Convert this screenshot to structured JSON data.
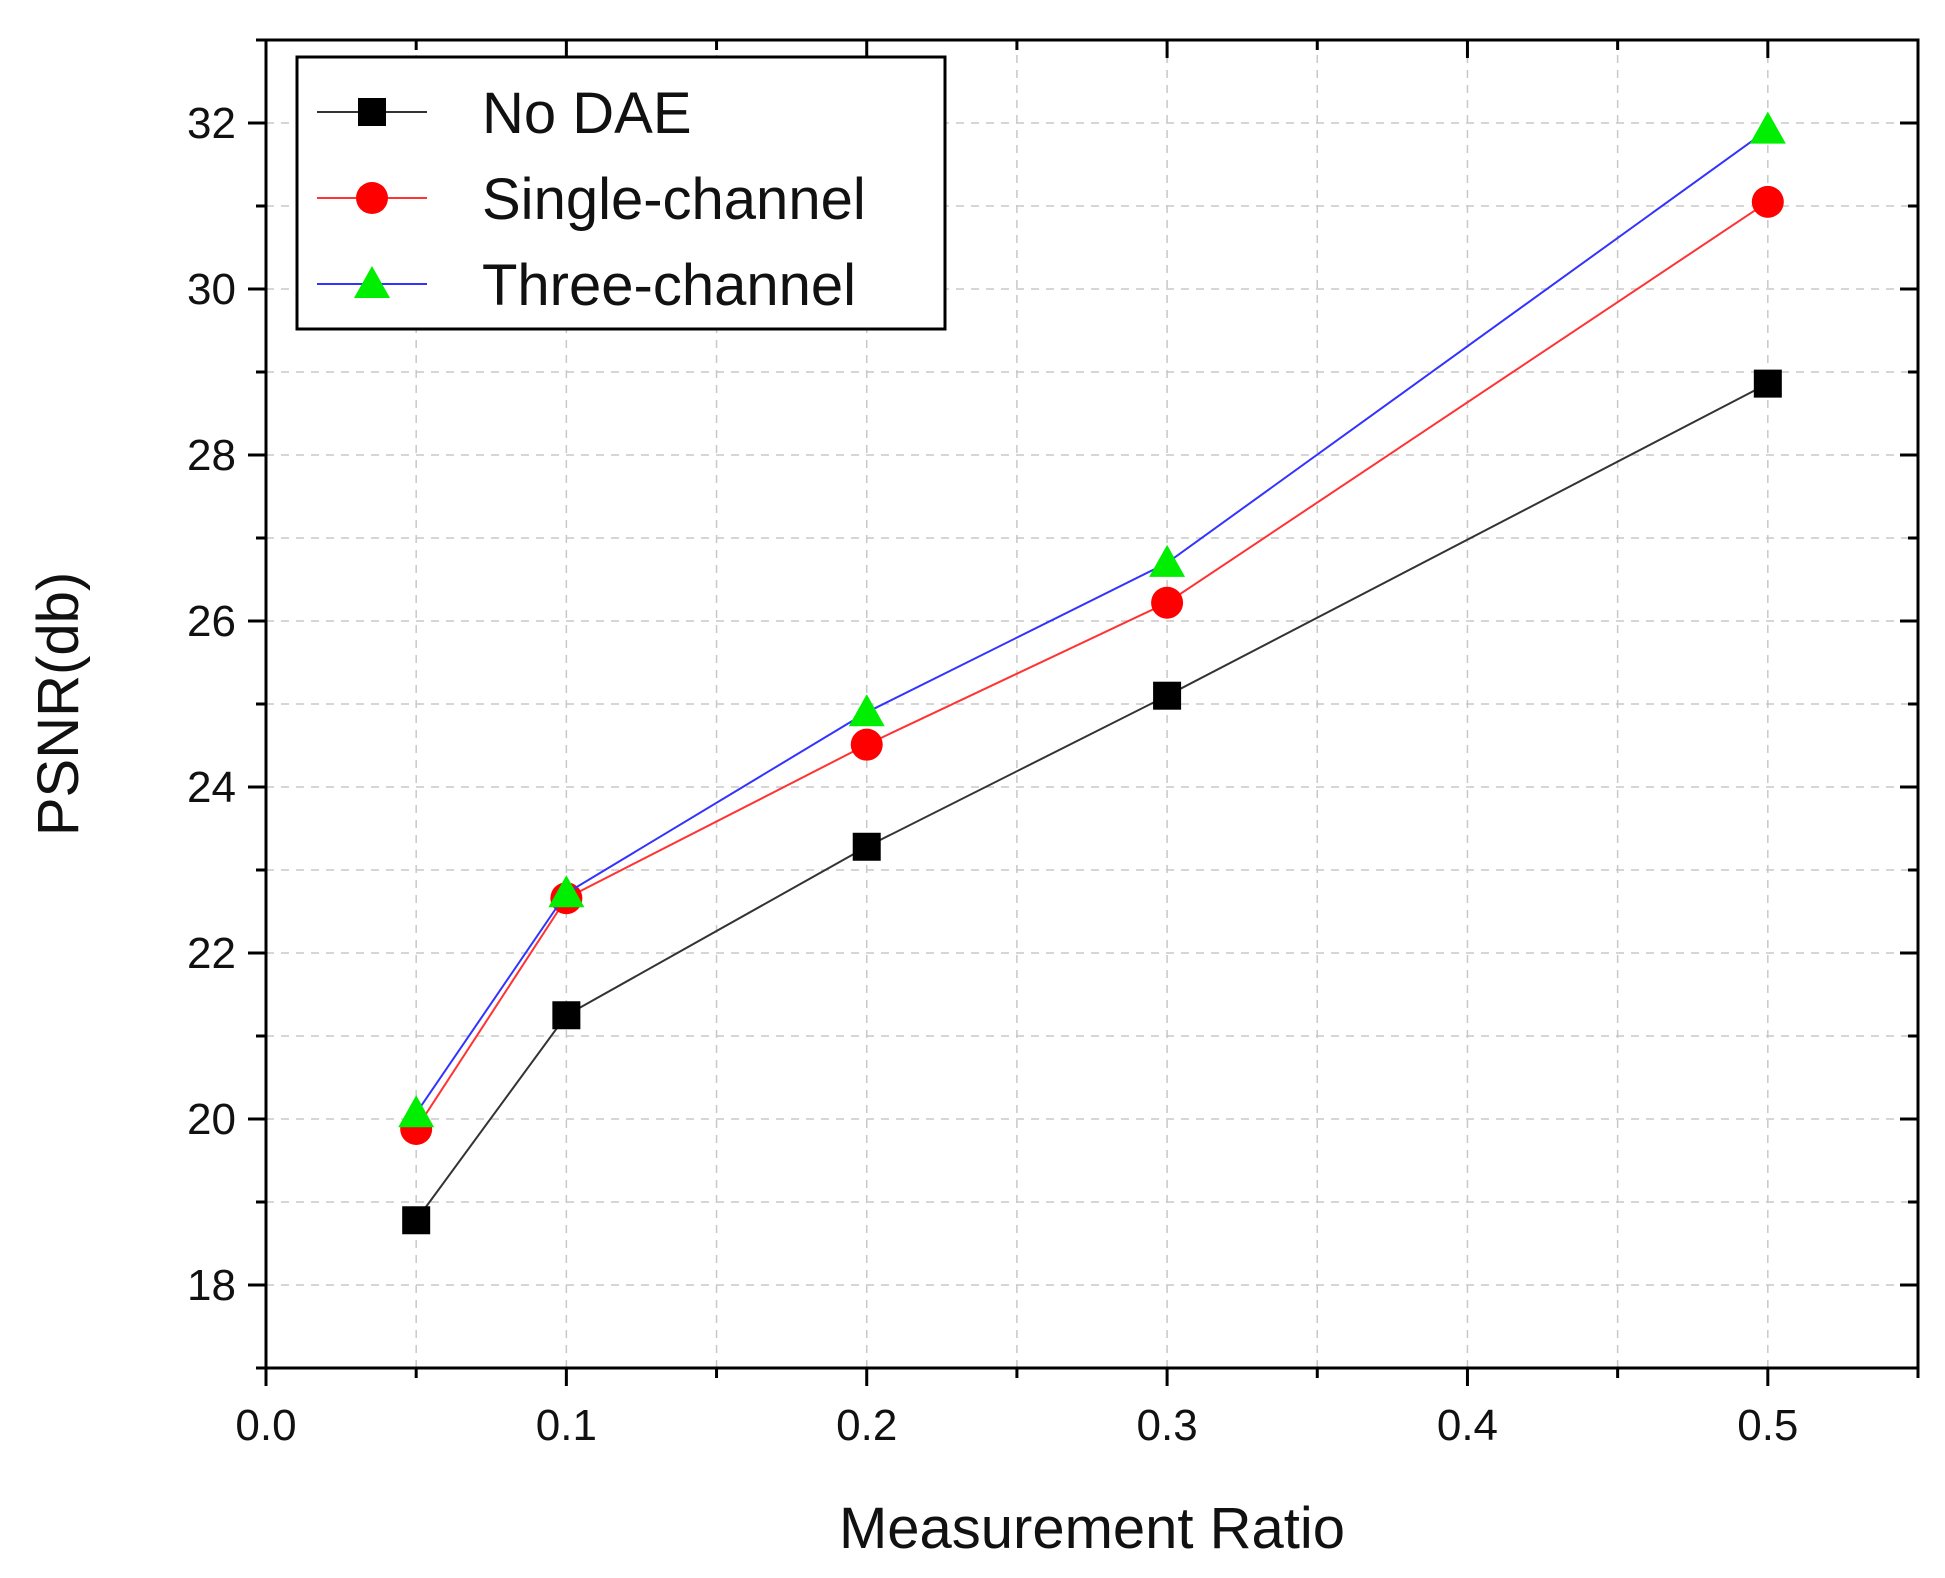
{
  "chart_data": {
    "type": "line",
    "title": "",
    "xlabel": "Measurement Ratio",
    "ylabel": "PSNR(db)",
    "xlim": [
      0.0,
      0.55
    ],
    "ylim": [
      17.0,
      33.0
    ],
    "xticks": [
      0.0,
      0.1,
      0.2,
      0.3,
      0.4,
      0.5
    ],
    "xtick_labels": [
      "0.0",
      "0.1",
      "0.2",
      "0.3",
      "0.4",
      "0.5"
    ],
    "yticks": [
      18,
      20,
      22,
      24,
      26,
      28,
      30,
      32
    ],
    "ytick_labels": [
      "18",
      "20",
      "22",
      "24",
      "26",
      "28",
      "30",
      "32"
    ],
    "grid": true,
    "legend_position": "top-left",
    "x": [
      0.05,
      0.1,
      0.2,
      0.3,
      0.5
    ],
    "series": [
      {
        "name": "No DAE",
        "values": [
          18.78,
          21.25,
          23.28,
          25.1,
          28.86
        ],
        "line_color": "#333333",
        "marker": "square",
        "marker_color": "#000000"
      },
      {
        "name": "Single-channel",
        "values": [
          19.88,
          22.66,
          24.51,
          26.22,
          31.05
        ],
        "line_color": "#ff3333",
        "marker": "circle",
        "marker_color": "#ff0000"
      },
      {
        "name": "Three-channel",
        "values": [
          20.07,
          22.72,
          24.9,
          26.7,
          31.92
        ],
        "line_color": "#3333ff",
        "marker": "triangle",
        "marker_color": "#00ee00"
      }
    ]
  }
}
